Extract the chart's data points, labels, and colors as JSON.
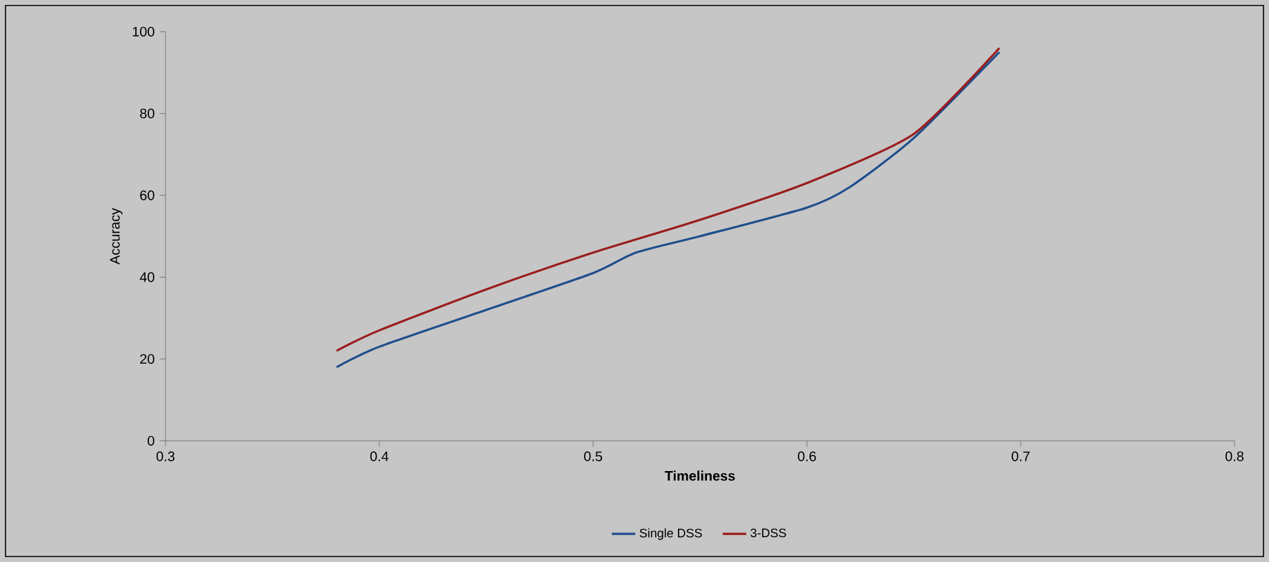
{
  "chart_data": {
    "type": "line",
    "xlabel": "Timeliness",
    "ylabel": "Accuracy",
    "xlim": [
      0.3,
      0.8
    ],
    "xticks": [
      0.3,
      0.4,
      0.5,
      0.6,
      0.7,
      0.8
    ],
    "ylim": [
      0,
      100
    ],
    "yticks": [
      0,
      20,
      40,
      60,
      80,
      100
    ],
    "grid": false,
    "legend": "bottom",
    "marker": "none",
    "line_style": "solid",
    "series": [
      {
        "name": "Single DSS",
        "color": "#1f4e8c",
        "x": [
          0.38,
          0.4,
          0.45,
          0.5,
          0.52,
          0.55,
          0.6,
          0.62,
          0.65,
          0.69
        ],
        "values": [
          18,
          23,
          32,
          41,
          46,
          50,
          57,
          62,
          74,
          95
        ]
      },
      {
        "name": "3-DSS",
        "color": "#9b1c1c",
        "x": [
          0.38,
          0.4,
          0.45,
          0.5,
          0.55,
          0.6,
          0.65,
          0.69
        ],
        "values": [
          22,
          27,
          37,
          46,
          54,
          63,
          75,
          96
        ]
      }
    ]
  }
}
